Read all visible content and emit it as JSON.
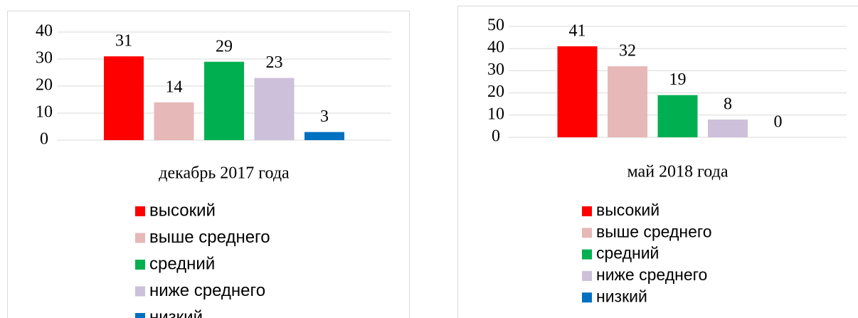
{
  "chart_data": [
    {
      "type": "bar",
      "categories": [
        "декабрь 2017 года"
      ],
      "series": [
        {
          "name": "высокий",
          "color": "#ff0000",
          "values": [
            31
          ]
        },
        {
          "name": "выше среднего",
          "color": "#e6b8b7",
          "values": [
            14
          ]
        },
        {
          "name": "средний",
          "color": "#00b050",
          "values": [
            29
          ]
        },
        {
          "name": "ниже среднего",
          "color": "#ccc0da",
          "values": [
            23
          ]
        },
        {
          "name": "низкий",
          "color": "#0070c0",
          "values": [
            3
          ]
        }
      ],
      "ylim": [
        0,
        40
      ],
      "yticks": [
        0,
        10,
        20,
        30,
        40
      ],
      "grid": true,
      "legend": "bottom"
    },
    {
      "type": "bar",
      "categories": [
        "май 2018 года"
      ],
      "series": [
        {
          "name": "высокий",
          "color": "#ff0000",
          "values": [
            41
          ]
        },
        {
          "name": "выше среднего",
          "color": "#e6b8b7",
          "values": [
            32
          ]
        },
        {
          "name": "средний",
          "color": "#00b050",
          "values": [
            19
          ]
        },
        {
          "name": "ниже среднего",
          "color": "#ccc0da",
          "values": [
            8
          ]
        },
        {
          "name": "низкий",
          "color": "#0070c0",
          "values": [
            0
          ]
        }
      ],
      "ylim": [
        0,
        50
      ],
      "yticks": [
        0,
        10,
        20,
        30,
        40,
        50
      ],
      "grid": true,
      "legend": "bottom"
    }
  ]
}
